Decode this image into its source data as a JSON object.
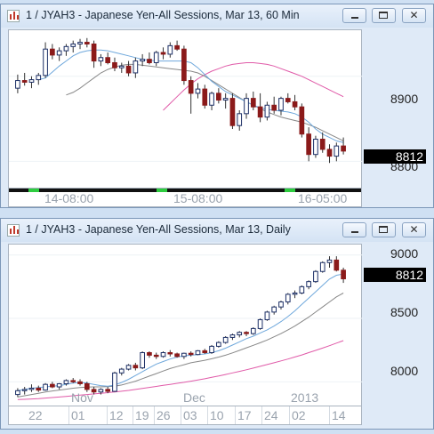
{
  "window_top": {
    "title": "1 / JYAH3 - Japanese Yen-All Sessions, Mar 13, 60 Min",
    "price_labels": [
      "8900",
      "8800"
    ],
    "last_price": "8812",
    "time_labels": [
      "14-08:00",
      "15-08:00",
      "16-05:00"
    ],
    "ylim": [
      8770,
      8950
    ]
  },
  "window_bottom": {
    "title": "1 / JYAH3 - Japanese Yen-All Sessions, Mar 13, Daily",
    "price_labels": [
      "9000",
      "8500",
      "8000"
    ],
    "last_price": "8812",
    "month_labels": [
      "Nov",
      "Dec",
      "2013"
    ],
    "day_labels": [
      "22",
      "01",
      "12",
      "19",
      "26",
      "03",
      "10",
      "17",
      "24",
      "02",
      "14"
    ],
    "ylim": [
      7820,
      9040
    ]
  },
  "controls": {
    "minimize": "▁",
    "maximize": "▢",
    "close": "✕"
  },
  "colors": {
    "up": "#1c2f66",
    "down": "#8b1a1a",
    "ma_fast": "#6fa8dc",
    "ma_mid": "#888888",
    "ma_slow": "#e05aa8"
  },
  "chart_data": [
    {
      "type": "candlestick",
      "title": "1 / JYAH3 - Japanese Yen-All Sessions, Mar 13, 60 Min",
      "x_ticks": [
        "14-08:00",
        "15-08:00",
        "16-05:00"
      ],
      "y_ticks": [
        8900,
        8800
      ],
      "last": 8812,
      "candles": [
        [
          8886,
          8902,
          8880,
          8895
        ],
        [
          8895,
          8904,
          8889,
          8893
        ],
        [
          8893,
          8900,
          8886,
          8896
        ],
        [
          8896,
          8904,
          8890,
          8901
        ],
        [
          8901,
          8940,
          8898,
          8932
        ],
        [
          8932,
          8938,
          8920,
          8925
        ],
        [
          8925,
          8934,
          8918,
          8930
        ],
        [
          8930,
          8938,
          8924,
          8935
        ],
        [
          8935,
          8942,
          8928,
          8938
        ],
        [
          8938,
          8944,
          8932,
          8940
        ],
        [
          8940,
          8945,
          8934,
          8938
        ],
        [
          8938,
          8942,
          8910,
          8918
        ],
        [
          8918,
          8926,
          8912,
          8922
        ],
        [
          8922,
          8928,
          8914,
          8916
        ],
        [
          8916,
          8922,
          8906,
          8910
        ],
        [
          8910,
          8916,
          8904,
          8912
        ],
        [
          8912,
          8918,
          8900,
          8904
        ],
        [
          8904,
          8922,
          8898,
          8918
        ],
        [
          8918,
          8926,
          8912,
          8920
        ],
        [
          8920,
          8928,
          8914,
          8916
        ],
        [
          8916,
          8930,
          8912,
          8928
        ],
        [
          8928,
          8934,
          8920,
          8926
        ],
        [
          8926,
          8940,
          8922,
          8936
        ],
        [
          8936,
          8942,
          8930,
          8932
        ],
        [
          8932,
          8936,
          8890,
          8895
        ],
        [
          8895,
          8900,
          8856,
          8880
        ],
        [
          8880,
          8892,
          8874,
          8885
        ],
        [
          8885,
          8890,
          8862,
          8866
        ],
        [
          8866,
          8882,
          8860,
          8880
        ],
        [
          8880,
          8886,
          8868,
          8872
        ],
        [
          8872,
          8880,
          8862,
          8874
        ],
        [
          8874,
          8880,
          8838,
          8842
        ],
        [
          8842,
          8860,
          8836,
          8856
        ],
        [
          8856,
          8880,
          8850,
          8874
        ],
        [
          8874,
          8882,
          8860,
          8864
        ],
        [
          8864,
          8880,
          8846,
          8852
        ],
        [
          8852,
          8870,
          8848,
          8866
        ],
        [
          8866,
          8876,
          8856,
          8860
        ],
        [
          8860,
          8876,
          8854,
          8874
        ],
        [
          8874,
          8880,
          8868,
          8870
        ],
        [
          8870,
          8878,
          8860,
          8864
        ],
        [
          8864,
          8868,
          8828,
          8832
        ],
        [
          8832,
          8840,
          8800,
          8808
        ],
        [
          8808,
          8830,
          8804,
          8826
        ],
        [
          8826,
          8834,
          8810,
          8814
        ],
        [
          8814,
          8820,
          8798,
          8806
        ],
        [
          8806,
          8822,
          8800,
          8818
        ],
        [
          8818,
          8828,
          8808,
          8812
        ]
      ],
      "ma_fast": [
        8896,
        8898,
        8905,
        8912,
        8918,
        8924,
        8928,
        8930,
        8931,
        8931,
        8930,
        8928,
        8926,
        8924,
        8922,
        8920,
        8919,
        8918,
        8918,
        8918,
        8918,
        8918,
        8916,
        8910,
        8902,
        8894,
        8888,
        8882,
        8878,
        8874,
        8870,
        8866,
        8863,
        8861,
        8860,
        8859,
        8858,
        8856,
        8852,
        8846,
        8838,
        8832,
        8828,
        8824,
        8822
      ],
      "ma_mid": [
        8878,
        8881,
        8886,
        8892,
        8898,
        8904,
        8908,
        8911,
        8913,
        8914,
        8914,
        8913,
        8912,
        8911,
        8910,
        8909,
        8908,
        8907,
        8906,
        8904,
        8900,
        8895,
        8890,
        8885,
        8880,
        8875,
        8870,
        8866,
        8862,
        8858,
        8855,
        8852,
        8850,
        8848,
        8846,
        8843,
        8840,
        8836,
        8832,
        8828,
        8824
      ],
      "ma_slow": [
        8860,
        8868,
        8876,
        8884,
        8891,
        8897,
        8902,
        8906,
        8909,
        8912,
        8914,
        8915,
        8916,
        8916,
        8915,
        8914,
        8912,
        8909,
        8906,
        8903,
        8900,
        8896,
        8892,
        8888,
        8884,
        8880,
        8876
      ]
    },
    {
      "type": "candlestick",
      "title": "1 / JYAH3 - Japanese Yen-All Sessions, Mar 13, Daily",
      "x_ticks": [
        "22",
        "01",
        "12",
        "19",
        "26",
        "03",
        "10",
        "17",
        "24",
        "02",
        "14"
      ],
      "x_month_labels": [
        "Nov",
        "Dec",
        "2013"
      ],
      "y_ticks": [
        9000,
        8500,
        8000
      ],
      "last": 8812,
      "candles": [
        [
          7900,
          7950,
          7880,
          7930
        ],
        [
          7930,
          7960,
          7900,
          7940
        ],
        [
          7940,
          7980,
          7920,
          7950
        ],
        [
          7950,
          7970,
          7920,
          7935
        ],
        [
          7935,
          7990,
          7930,
          7980
        ],
        [
          7980,
          8000,
          7950,
          7960
        ],
        [
          7960,
          7990,
          7940,
          7985
        ],
        [
          7985,
          8020,
          7970,
          8010
        ],
        [
          8010,
          8030,
          7990,
          8000
        ],
        [
          8000,
          8020,
          7970,
          7985
        ],
        [
          7985,
          8000,
          7920,
          7940
        ],
        [
          7940,
          7960,
          7900,
          7920
        ],
        [
          7920,
          7950,
          7900,
          7940
        ],
        [
          7940,
          7960,
          7910,
          7925
        ],
        [
          7925,
          8080,
          7920,
          8070
        ],
        [
          8070,
          8110,
          8050,
          8100
        ],
        [
          8100,
          8140,
          8090,
          8130
        ],
        [
          8130,
          8150,
          8090,
          8110
        ],
        [
          8110,
          8240,
          8100,
          8230
        ],
        [
          8230,
          8240,
          8190,
          8210
        ],
        [
          8210,
          8230,
          8180,
          8200
        ],
        [
          8200,
          8240,
          8190,
          8230
        ],
        [
          8230,
          8250,
          8200,
          8220
        ],
        [
          8220,
          8230,
          8190,
          8200
        ],
        [
          8200,
          8230,
          8180,
          8225
        ],
        [
          8225,
          8240,
          8200,
          8215
        ],
        [
          8215,
          8250,
          8210,
          8245
        ],
        [
          8245,
          8260,
          8220,
          8230
        ],
        [
          8230,
          8290,
          8220,
          8280
        ],
        [
          8280,
          8320,
          8270,
          8310
        ],
        [
          8310,
          8360,
          8300,
          8350
        ],
        [
          8350,
          8380,
          8330,
          8370
        ],
        [
          8370,
          8400,
          8350,
          8390
        ],
        [
          8390,
          8400,
          8360,
          8380
        ],
        [
          8380,
          8430,
          8370,
          8420
        ],
        [
          8420,
          8500,
          8410,
          8490
        ],
        [
          8490,
          8560,
          8480,
          8550
        ],
        [
          8550,
          8600,
          8530,
          8590
        ],
        [
          8590,
          8640,
          8570,
          8630
        ],
        [
          8630,
          8700,
          8610,
          8690
        ],
        [
          8690,
          8720,
          8660,
          8700
        ],
        [
          8700,
          8760,
          8690,
          8750
        ],
        [
          8750,
          8800,
          8730,
          8790
        ],
        [
          8790,
          8880,
          8780,
          8870
        ],
        [
          8870,
          8950,
          8860,
          8940
        ],
        [
          8940,
          8990,
          8900,
          8960
        ],
        [
          8960,
          8990,
          8870,
          8880
        ],
        [
          8880,
          8900,
          8780,
          8812
        ]
      ],
      "ma_fast": [
        7930,
        7940,
        7950,
        7955,
        7960,
        7965,
        7970,
        7980,
        7990,
        7995,
        7990,
        7980,
        7970,
        7965,
        7975,
        7995,
        8020,
        8050,
        8080,
        8110,
        8140,
        8160,
        8180,
        8195,
        8205,
        8210,
        8215,
        8220,
        8230,
        8245,
        8265,
        8290,
        8315,
        8340,
        8360,
        8385,
        8410,
        8440,
        8475,
        8515,
        8560,
        8610,
        8660,
        8710,
        8760,
        8810,
        8840,
        8850
      ],
      "ma_mid": [
        7880,
        7890,
        7900,
        7910,
        7920,
        7928,
        7935,
        7942,
        7950,
        7955,
        7958,
        7960,
        7960,
        7962,
        7966,
        7975,
        7990,
        8005,
        8025,
        8045,
        8065,
        8085,
        8105,
        8120,
        8135,
        8150,
        8160,
        8170,
        8182,
        8195,
        8210,
        8228,
        8248,
        8268,
        8288,
        8308,
        8330,
        8355,
        8380,
        8410,
        8440,
        8475,
        8510,
        8550,
        8590,
        8630,
        8670,
        8700
      ],
      "ma_slow": [
        7860,
        7862,
        7865,
        7868,
        7872,
        7876,
        7880,
        7885,
        7890,
        7895,
        7900,
        7905,
        7910,
        7915,
        7920,
        7926,
        7932,
        7940,
        7948,
        7956,
        7964,
        7972,
        7980,
        7988,
        7996,
        8005,
        8014,
        8024,
        8035,
        8046,
        8058,
        8070,
        8082,
        8095,
        8108,
        8122,
        8136,
        8150,
        8165,
        8180,
        8196,
        8212,
        8230,
        8248,
        8266,
        8285,
        8305,
        8325
      ]
    }
  ]
}
